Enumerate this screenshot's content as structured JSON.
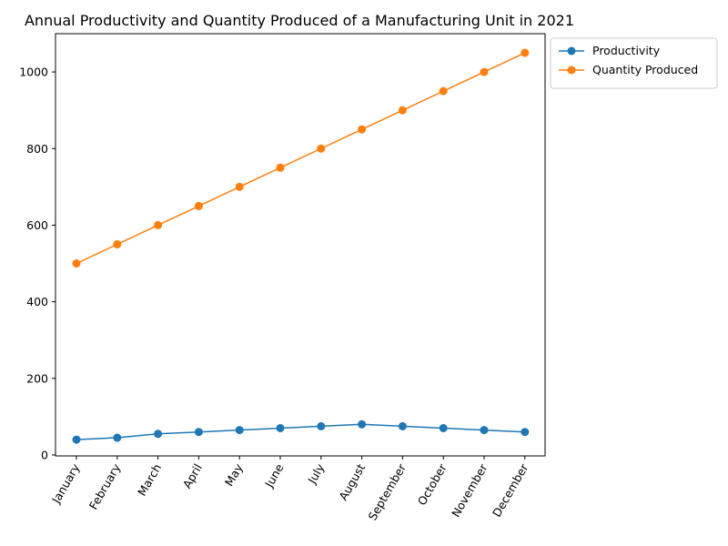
{
  "chart_data": {
    "type": "line",
    "title": "Annual Productivity and Quantity Produced of a Manufacturing Unit in 2021",
    "xlabel": "",
    "ylabel": "",
    "categories": [
      "January",
      "February",
      "March",
      "April",
      "May",
      "June",
      "July",
      "August",
      "September",
      "October",
      "November",
      "December"
    ],
    "series": [
      {
        "name": "Productivity",
        "color": "#1f77b4",
        "values": [
          40,
          45,
          55,
          60,
          65,
          70,
          75,
          80,
          75,
          70,
          65,
          60
        ]
      },
      {
        "name": "Quantity Produced",
        "color": "#ff7f0e",
        "values": [
          500,
          550,
          600,
          650,
          700,
          750,
          800,
          850,
          900,
          950,
          1000,
          1050
        ]
      }
    ],
    "ylim": [
      -2.5,
      1100
    ],
    "yticks": [
      0,
      200,
      400,
      600,
      800,
      1000
    ],
    "grid": false,
    "legend_position": "outside-top-right",
    "marker": "circle"
  }
}
